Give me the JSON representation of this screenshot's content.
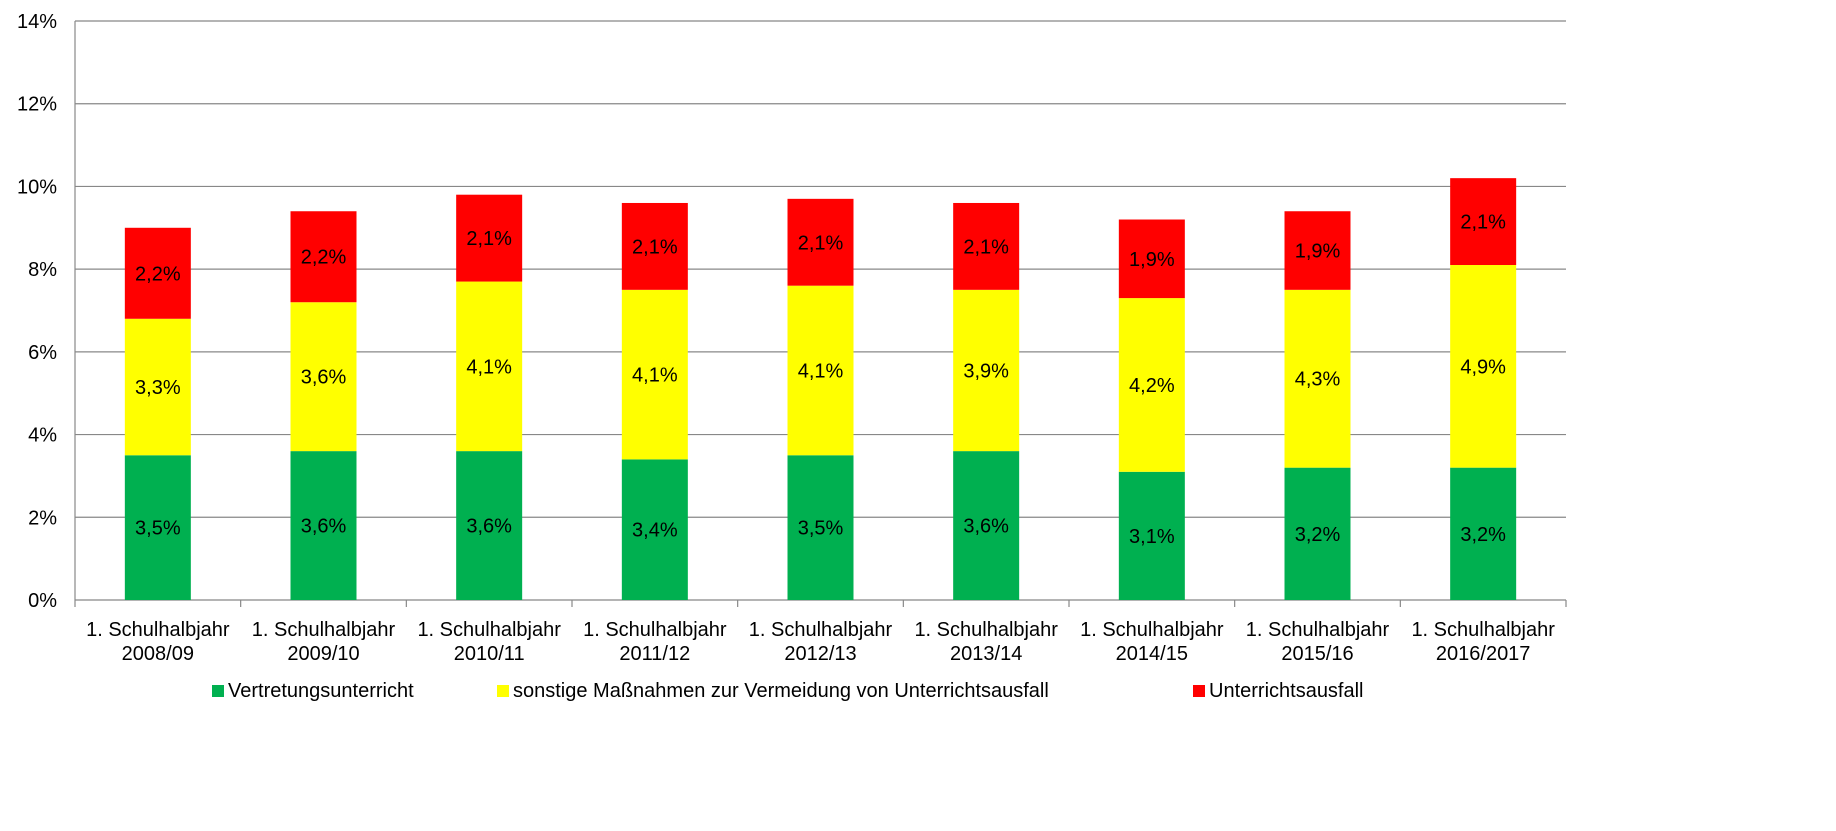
{
  "chart_data": {
    "type": "stacked_bar",
    "categories": [
      "1. Schulhalbjahr 2008/09",
      "1. Schulhalbjahr 2009/10",
      "1. Schulhalbjahr 2010/11",
      "1. Schulhalbjahr 2011/12",
      "1. Schulhalbjahr 2012/13",
      "1. Schulhalbjahr 2013/14",
      "1. Schulhalbjahr 2014/15",
      "1. Schulhalbjahr 2015/16",
      "1. Schulhalbjahr 2016/2017"
    ],
    "series": [
      {
        "name": "Vertretungsunterricht",
        "color": "#00b050",
        "values": [
          3.5,
          3.6,
          3.6,
          3.4,
          3.5,
          3.6,
          3.1,
          3.2,
          3.2
        ],
        "value_labels": [
          "3,5%",
          "3,6%",
          "3,6%",
          "3,4%",
          "3,5%",
          "3,6%",
          "3,1%",
          "3,2%",
          "3,2%"
        ]
      },
      {
        "name": "sonstige Maßnahmen zur Vermeidung von Unterrichtsausfall",
        "color": "#ffff00",
        "values": [
          3.3,
          3.6,
          4.1,
          4.1,
          4.1,
          3.9,
          4.2,
          4.3,
          4.9
        ],
        "value_labels": [
          "3,3%",
          "3,6%",
          "4,1%",
          "4,1%",
          "4,1%",
          "3,9%",
          "4,2%",
          "4,3%",
          "4,9%"
        ]
      },
      {
        "name": "Unterrichtsausfall",
        "color": "#ff0000",
        "values": [
          2.2,
          2.2,
          2.1,
          2.1,
          2.1,
          2.1,
          1.9,
          1.9,
          2.1
        ],
        "value_labels": [
          "2,2%",
          "2,2%",
          "2,1%",
          "2,1%",
          "2,1%",
          "2,1%",
          "1,9%",
          "1,9%",
          "2,1%"
        ]
      }
    ],
    "ylim": [
      0,
      14
    ],
    "yticks": [
      {
        "value": 0,
        "label": "0%"
      },
      {
        "value": 2,
        "label": "2%"
      },
      {
        "value": 4,
        "label": "4%"
      },
      {
        "value": 6,
        "label": "6%"
      },
      {
        "value": 8,
        "label": "8%"
      },
      {
        "value": 10,
        "label": "10%"
      },
      {
        "value": 12,
        "label": "12%"
      },
      {
        "value": 14,
        "label": "14%"
      }
    ],
    "grid": true,
    "legend": "bottom"
  }
}
